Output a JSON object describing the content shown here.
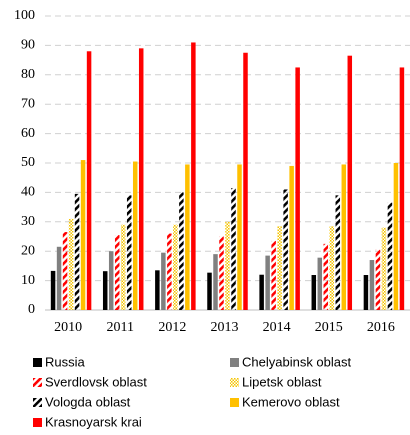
{
  "chart_data": {
    "type": "bar",
    "categories": [
      "2010",
      "2011",
      "2012",
      "2013",
      "2014",
      "2015",
      "2016"
    ],
    "series": [
      {
        "name": "Russia",
        "color": "#000000",
        "pattern": "solid",
        "values": [
          13.3,
          13.2,
          13.5,
          12.7,
          12.0,
          11.9,
          11.9
        ]
      },
      {
        "name": "Chelyabinsk oblast",
        "color": "#808080",
        "pattern": "solid",
        "values": [
          21.5,
          20.0,
          19.5,
          19.0,
          18.5,
          17.8,
          17.0
        ]
      },
      {
        "name": "Sverdlovsk oblast",
        "color": "#ff0000",
        "pattern": "stripes",
        "values": [
          26.5,
          25.5,
          26.0,
          25.0,
          23.5,
          22.5,
          20.5
        ]
      },
      {
        "name": "Lipetsk oblast",
        "color": "#f5c400",
        "pattern": "dots",
        "values": [
          31.0,
          29.0,
          29.0,
          30.0,
          28.5,
          28.5,
          28.0
        ]
      },
      {
        "name": "Vologda oblast",
        "color": "#000000",
        "pattern": "stripes",
        "values": [
          39.5,
          39.0,
          40.0,
          41.5,
          41.0,
          39.0,
          36.5
        ]
      },
      {
        "name": "Kemerovo oblast",
        "color": "#ffc000",
        "pattern": "solid",
        "values": [
          51.0,
          50.5,
          49.5,
          49.5,
          49.0,
          49.5,
          50.0
        ]
      },
      {
        "name": "Krasnoyarsk krai",
        "color": "#ff0000",
        "pattern": "solid",
        "values": [
          88.0,
          89.0,
          91.0,
          87.5,
          82.5,
          86.5,
          82.5
        ]
      }
    ],
    "ylim": [
      0,
      100
    ],
    "yticks": [
      0,
      10,
      20,
      30,
      40,
      50,
      60,
      70,
      80,
      90,
      100
    ],
    "grid": true,
    "legend": "bottom"
  }
}
